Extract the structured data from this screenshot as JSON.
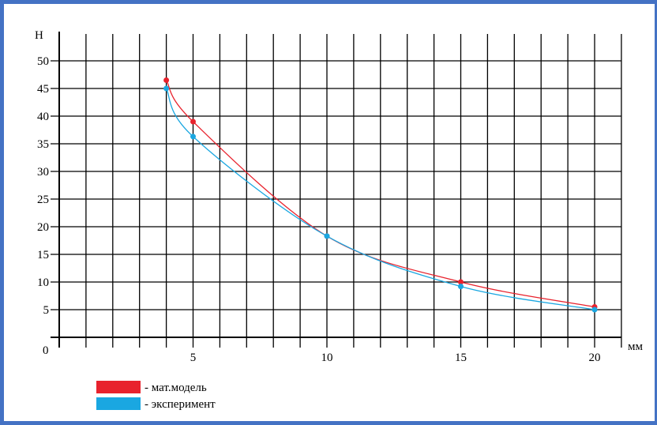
{
  "chart_data": {
    "type": "line",
    "xlabel": "мм",
    "ylabel": "Н",
    "origin_label": "0",
    "xlim": [
      0,
      21
    ],
    "ylim": [
      0,
      50
    ],
    "x_ticks": [
      5,
      10,
      15,
      20
    ],
    "y_ticks": [
      5,
      10,
      15,
      20,
      25,
      30,
      35,
      40,
      45,
      50
    ],
    "grid": true,
    "legend_position": "bottom-left",
    "series": [
      {
        "name": "- мат.модель",
        "color": "#E8222D",
        "x": [
          4,
          5,
          10,
          15,
          20
        ],
        "y": [
          46.5,
          39,
          18.3,
          10,
          5.5
        ]
      },
      {
        "name": "- эксперимент",
        "color": "#1AA7E1",
        "x": [
          4,
          5,
          10,
          15,
          20
        ],
        "y": [
          45,
          36.3,
          18.3,
          9.2,
          5
        ]
      }
    ]
  }
}
